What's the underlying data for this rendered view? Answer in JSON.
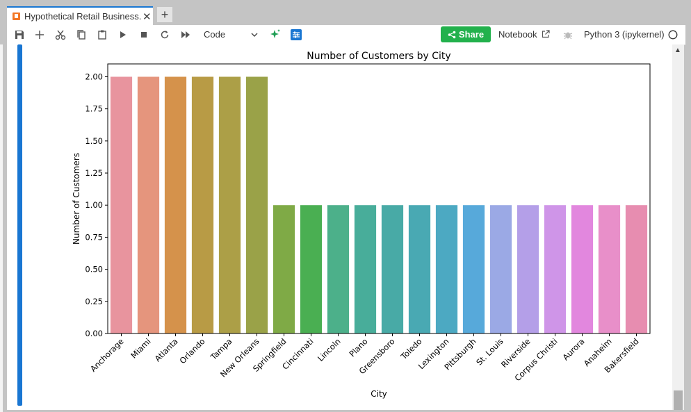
{
  "tab": {
    "title": "Hypothetical Retail Business.i",
    "close": "✕",
    "new_tab": "+"
  },
  "toolbar": {
    "cell_type": "Code",
    "share_label": "Share",
    "notebook_label": "Notebook",
    "kernel_label": "Python 3 (ipykernel)"
  },
  "chart_data": {
    "type": "bar",
    "title": "Number of Customers by City",
    "xlabel": "City",
    "ylabel": "Number of Customers",
    "ylim": [
      0,
      2.1
    ],
    "yticks": [
      "0.00",
      "0.25",
      "0.50",
      "0.75",
      "1.00",
      "1.25",
      "1.50",
      "1.75",
      "2.00"
    ],
    "categories": [
      "Anchorage",
      "Miami",
      "Atlanta",
      "Orlando",
      "Tampa",
      "New Orleans",
      "Springfield",
      "Cincinnati",
      "Lincoln",
      "Plano",
      "Greensboro",
      "Toledo",
      "Lexington",
      "Pittsburgh",
      "St. Louis",
      "Riverside",
      "Corpus Christi",
      "Aurora",
      "Anaheim",
      "Bakersfield"
    ],
    "values": [
      2,
      2,
      2,
      2,
      2,
      2,
      1,
      1,
      1,
      1,
      1,
      1,
      1,
      1,
      1,
      1,
      1,
      1,
      1,
      1
    ],
    "colors": [
      "#e8949e",
      "#e5957d",
      "#d5924b",
      "#b89b45",
      "#ac9f47",
      "#9aa248",
      "#7faa46",
      "#4aaf52",
      "#4cb08a",
      "#48ad9a",
      "#48aaa6",
      "#49a9b3",
      "#4ca9c2",
      "#57a9da",
      "#9ba9e5",
      "#b49fe8",
      "#cf95e8",
      "#e287de",
      "#e88fc9",
      "#e78db0"
    ],
    "grid": false
  }
}
